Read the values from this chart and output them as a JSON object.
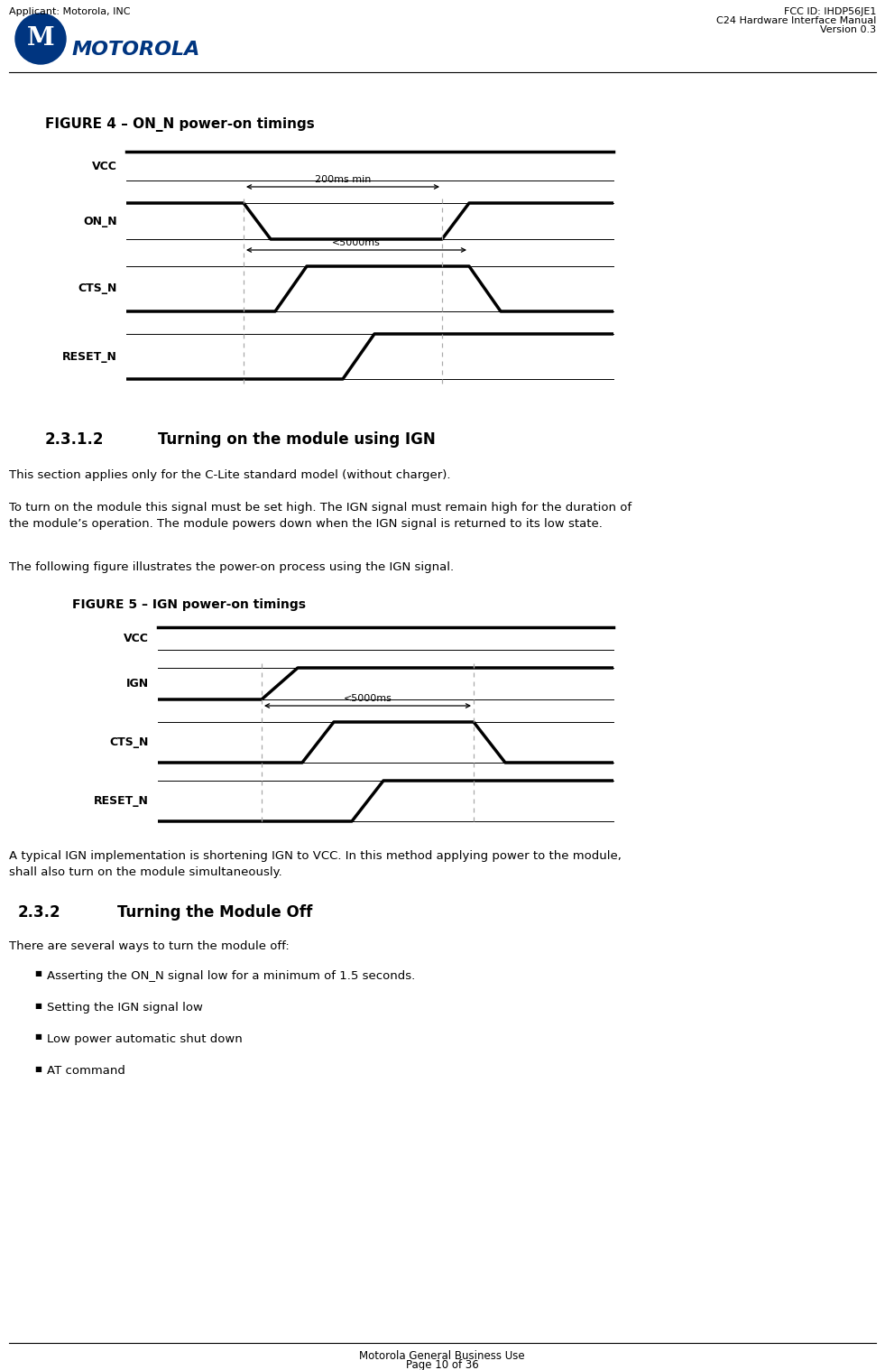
{
  "page_header_left": "Applicant: Motorola, INC",
  "page_header_right_line1": "FCC ID: IHDP56JE1",
  "page_header_right_line2": "C24 Hardware Interface Manual",
  "page_header_right_line3": "Version 0.3",
  "fig4_title": "FIGURE 4 – ON_N power-on timings",
  "fig5_title": "FIGURE 5 – IGN power-on timings",
  "para1": "This section applies only for the C-Lite standard model (without charger).",
  "para2": "To turn on the module this signal must be set high. The IGN signal must remain high for the duration of\nthe module’s operation. The module powers down when the IGN signal is returned to its low state.",
  "para3": "The following figure illustrates the power-on process using the IGN signal.",
  "para4": "A typical IGN implementation is shortening IGN to VCC. In this method applying power to the module,\nshall also turn on the module simultaneously.",
  "para_off": "There are several ways to turn the module off:",
  "bullets": [
    "Asserting the ON_N signal low for a minimum of 1.5 seconds.",
    "Setting the IGN signal low",
    "Low power automatic shut down",
    "AT command"
  ],
  "footer_line1": "Motorola General Business Use",
  "footer_line2": "Page 10 of 36",
  "bg_color": "#ffffff",
  "signal_lw": 2.5,
  "ref_lw": 0.8,
  "dash_color": "#aaaaaa"
}
